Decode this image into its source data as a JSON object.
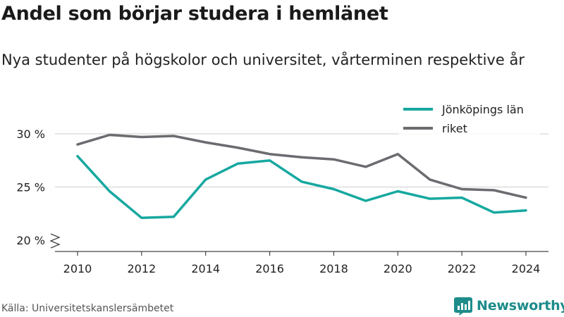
{
  "title": "Andel som börjar studera i hemlänet",
  "subtitle": "Nya studenter på högskolor och universitet, vårterminen respektive år",
  "source": "Källa: Universitetskanslersämbetet",
  "brand": {
    "name": "Newsworthy",
    "color": "#1d8c8a"
  },
  "chart_data": {
    "type": "line",
    "x": [
      2010,
      2011,
      2012,
      2013,
      2014,
      2015,
      2016,
      2017,
      2018,
      2019,
      2020,
      2021,
      2022,
      2023,
      2024
    ],
    "series": [
      {
        "name": "Jönköpings län",
        "color": "#16a8a0",
        "values": [
          27.9,
          24.6,
          22.1,
          22.2,
          25.7,
          27.2,
          27.5,
          25.5,
          24.8,
          23.7,
          24.6,
          23.9,
          24.0,
          22.6,
          22.8
        ]
      },
      {
        "name": "riket",
        "color": "#6b6b70",
        "values": [
          29.0,
          29.9,
          29.7,
          29.8,
          29.2,
          28.7,
          28.1,
          27.8,
          27.6,
          26.9,
          28.1,
          25.7,
          24.8,
          24.7,
          24.0
        ]
      }
    ],
    "xticks": [
      2010,
      2012,
      2014,
      2016,
      2018,
      2020,
      2022,
      2024
    ],
    "xtick_labels": [
      "2010",
      "2012",
      "2014",
      "2016",
      "2018",
      "2020",
      "2022",
      "2024"
    ],
    "yticks": [
      20,
      25,
      30
    ],
    "ytick_labels": [
      "20 %",
      "25 %",
      "30 %"
    ],
    "ylim": [
      20,
      30
    ],
    "axis_break": true,
    "grid": true,
    "legend_position": "top-right"
  }
}
